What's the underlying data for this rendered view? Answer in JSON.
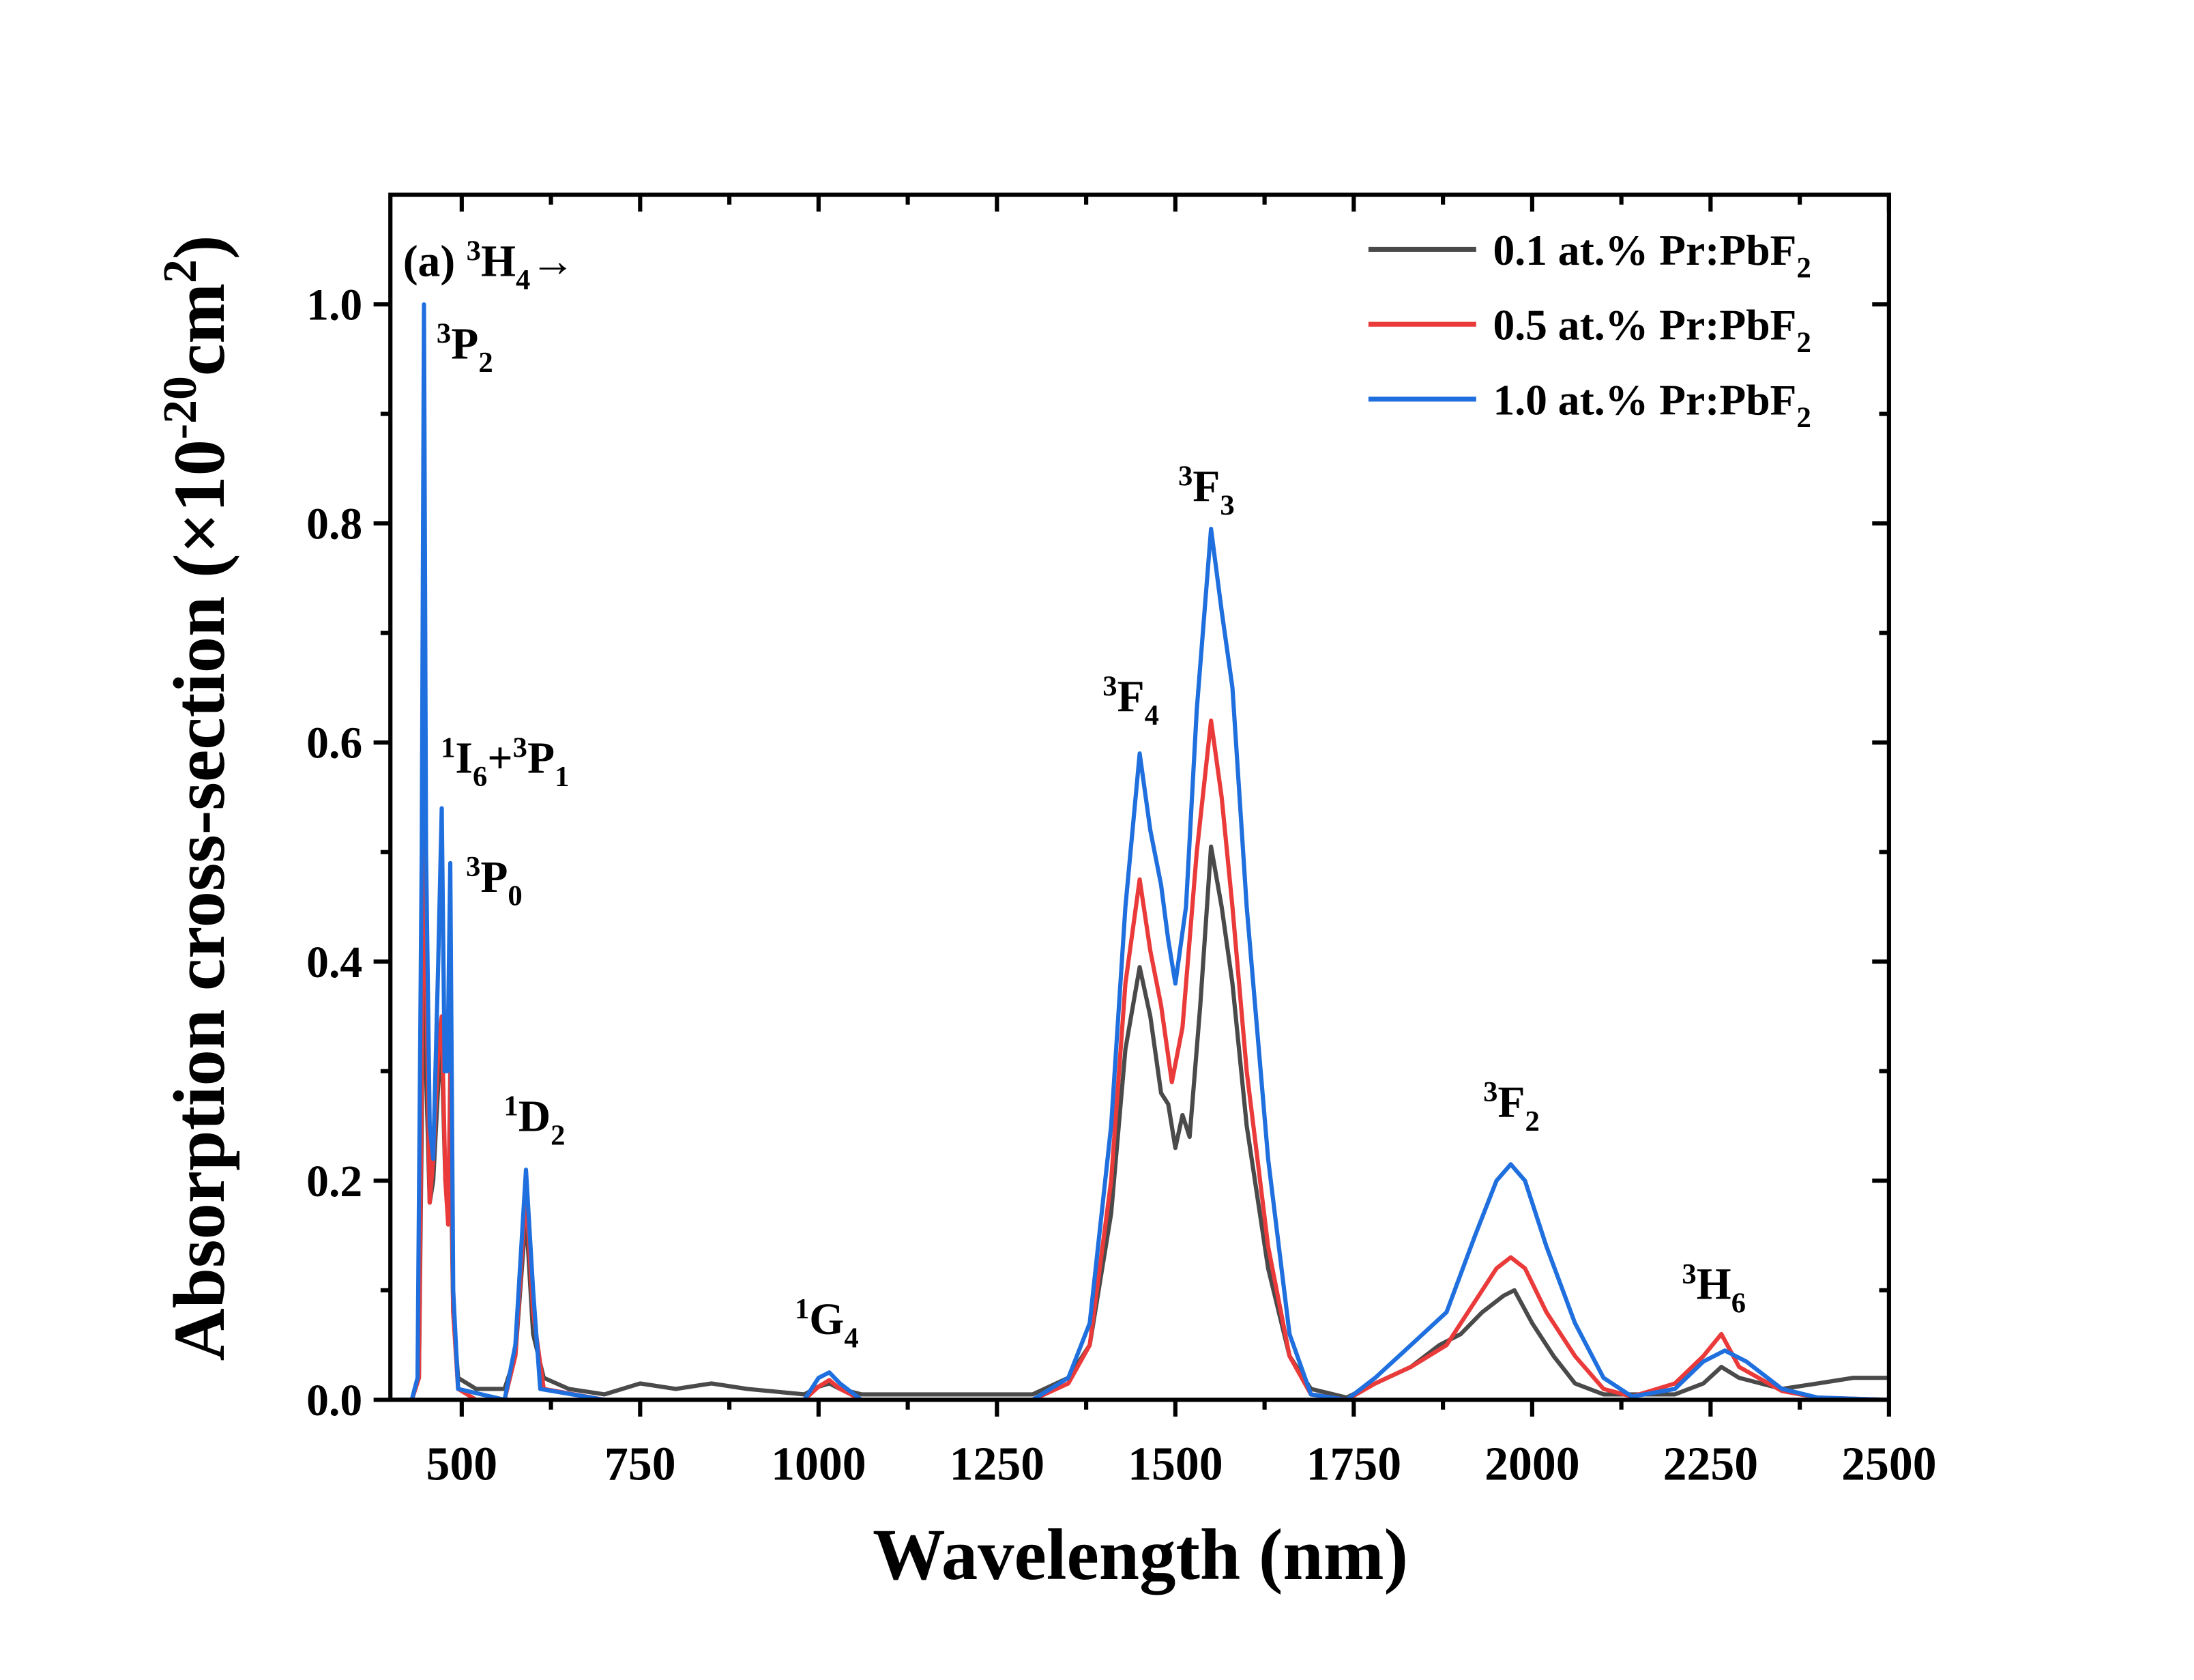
{
  "chart_data": {
    "type": "line",
    "title": "",
    "xlabel": "Wavelength (nm)",
    "ylabel": {
      "base": "Absorption cross-section (×10",
      "sup": "-20",
      "mid": "cm",
      "sup2": "2",
      "end": ")"
    },
    "xlim": [
      400,
      2500
    ],
    "ylim": [
      0,
      1.1
    ],
    "xticks": [
      "500",
      "750",
      "1000",
      "1250",
      "1500",
      "1750",
      "2000",
      "2250",
      "2500"
    ],
    "yticks": [
      "0.0",
      "0.2",
      "0.4",
      "0.6",
      "0.8",
      "1.0"
    ],
    "grid": false,
    "legend_position": "top-right",
    "panel_label": [
      {
        "t": "(a) "
      },
      {
        "t": "3",
        "s": "sup"
      },
      {
        "t": "H"
      },
      {
        "t": "4",
        "s": "sub"
      },
      {
        "t": "→"
      }
    ],
    "annotations": [
      [
        {
          "t": "3",
          "s": "sup"
        },
        {
          "t": "P"
        },
        {
          "t": "2",
          "s": "sub"
        }
      ],
      [
        {
          "t": "1",
          "s": "sup"
        },
        {
          "t": "I"
        },
        {
          "t": "6",
          "s": "sub"
        },
        {
          "t": "+"
        },
        {
          "t": "3",
          "s": "sup"
        },
        {
          "t": "P"
        },
        {
          "t": "1",
          "s": "sub"
        }
      ],
      [
        {
          "t": "3",
          "s": "sup"
        },
        {
          "t": "P"
        },
        {
          "t": "0",
          "s": "sub"
        }
      ],
      [
        {
          "t": "1",
          "s": "sup"
        },
        {
          "t": "D"
        },
        {
          "t": "2",
          "s": "sub"
        }
      ],
      [
        {
          "t": "1",
          "s": "sup"
        },
        {
          "t": "G"
        },
        {
          "t": "4",
          "s": "sub"
        }
      ],
      [
        {
          "t": "3",
          "s": "sup"
        },
        {
          "t": "F"
        },
        {
          "t": "4",
          "s": "sub"
        }
      ],
      [
        {
          "t": "3",
          "s": "sup"
        },
        {
          "t": "F"
        },
        {
          "t": "3",
          "s": "sub"
        }
      ],
      [
        {
          "t": "3",
          "s": "sup"
        },
        {
          "t": "F"
        },
        {
          "t": "2",
          "s": "sub"
        }
      ],
      [
        {
          "t": "3",
          "s": "sup"
        },
        {
          "t": "H"
        },
        {
          "t": "6",
          "s": "sub"
        }
      ]
    ],
    "series": [
      {
        "name": "0.1 at.% Pr:PbF",
        "name_sub": "2",
        "color": "#4a4a4a",
        "x": [
          400,
          430,
          440,
          444,
          447,
          450,
          455,
          460,
          468,
          472,
          477,
          481,
          484,
          488,
          495,
          520,
          560,
          575,
          590,
          600,
          615,
          650,
          700,
          750,
          800,
          850,
          900,
          980,
          1000,
          1015,
          1030,
          1060,
          1300,
          1350,
          1380,
          1410,
          1430,
          1450,
          1465,
          1480,
          1490,
          1500,
          1510,
          1520,
          1535,
          1550,
          1565,
          1580,
          1600,
          1630,
          1660,
          1690,
          1740,
          1780,
          1830,
          1870,
          1900,
          1930,
          1960,
          1975,
          2000,
          2030,
          2060,
          2100,
          2200,
          2240,
          2265,
          2290,
          2350,
          2400,
          2450,
          2500
        ],
        "y": [
          0,
          0,
          0.02,
          0.25,
          0.55,
          0.3,
          0.18,
          0.2,
          0.3,
          0.32,
          0.2,
          0.18,
          0.25,
          0.08,
          0.02,
          0.01,
          0.01,
          0.04,
          0.17,
          0.06,
          0.02,
          0.01,
          0.005,
          0.015,
          0.01,
          0.015,
          0.01,
          0.005,
          0.012,
          0.015,
          0.01,
          0.005,
          0.005,
          0.02,
          0.05,
          0.17,
          0.32,
          0.395,
          0.35,
          0.28,
          0.27,
          0.23,
          0.26,
          0.24,
          0.36,
          0.505,
          0.45,
          0.38,
          0.25,
          0.12,
          0.04,
          0.01,
          0.002,
          0.015,
          0.03,
          0.05,
          0.06,
          0.08,
          0.095,
          0.1,
          0.07,
          0.04,
          0.015,
          0.005,
          0.005,
          0.015,
          0.03,
          0.02,
          0.01,
          0.015,
          0.02,
          0.02
        ]
      },
      {
        "name": "0.5 at.% Pr:PbF",
        "name_sub": "2",
        "color": "#ea3a3a",
        "x": [
          400,
          430,
          440,
          444,
          447,
          450,
          455,
          460,
          468,
          472,
          477,
          481,
          484,
          488,
          495,
          520,
          560,
          575,
          590,
          600,
          615,
          700,
          980,
          1000,
          1015,
          1030,
          1060,
          1300,
          1350,
          1380,
          1410,
          1430,
          1450,
          1465,
          1480,
          1495,
          1510,
          1530,
          1550,
          1565,
          1580,
          1600,
          1630,
          1660,
          1690,
          1740,
          1780,
          1830,
          1880,
          1920,
          1950,
          1970,
          1990,
          2020,
          2060,
          2100,
          2140,
          2200,
          2240,
          2265,
          2290,
          2350,
          2400,
          2500
        ],
        "y": [
          0,
          0,
          0.02,
          0.3,
          0.7,
          0.4,
          0.18,
          0.22,
          0.33,
          0.35,
          0.2,
          0.16,
          0.3,
          0.08,
          0.01,
          0,
          0,
          0.04,
          0.19,
          0.08,
          0.01,
          0,
          0,
          0.012,
          0.018,
          0.01,
          0,
          0,
          0.015,
          0.05,
          0.2,
          0.38,
          0.475,
          0.41,
          0.36,
          0.29,
          0.34,
          0.5,
          0.62,
          0.55,
          0.45,
          0.3,
          0.14,
          0.04,
          0.005,
          0,
          0.015,
          0.03,
          0.05,
          0.09,
          0.12,
          0.13,
          0.12,
          0.08,
          0.04,
          0.01,
          0.003,
          0.015,
          0.04,
          0.06,
          0.03,
          0.008,
          0.002,
          0
        ]
      },
      {
        "name": "1.0 at.% Pr:PbF",
        "name_sub": "2",
        "color": "#1f6fde",
        "x": [
          400,
          430,
          438,
          444,
          447,
          450,
          455,
          460,
          467,
          472,
          476,
          480,
          484,
          488,
          495,
          560,
          575,
          590,
          600,
          610,
          700,
          980,
          1000,
          1015,
          1030,
          1060,
          1300,
          1350,
          1380,
          1410,
          1430,
          1450,
          1465,
          1480,
          1490,
          1500,
          1515,
          1530,
          1550,
          1565,
          1580,
          1600,
          1630,
          1660,
          1690,
          1740,
          1780,
          1830,
          1880,
          1920,
          1950,
          1970,
          1990,
          2020,
          2060,
          2100,
          2140,
          2200,
          2240,
          2270,
          2300,
          2350,
          2400,
          2500
        ],
        "y": [
          0,
          0,
          0.02,
          0.5,
          1.0,
          0.5,
          0.25,
          0.22,
          0.4,
          0.54,
          0.3,
          0.3,
          0.49,
          0.1,
          0.01,
          0,
          0.05,
          0.21,
          0.1,
          0.01,
          0,
          0,
          0.02,
          0.025,
          0.015,
          0,
          0,
          0.02,
          0.07,
          0.25,
          0.45,
          0.59,
          0.52,
          0.47,
          0.42,
          0.38,
          0.45,
          0.63,
          0.795,
          0.72,
          0.65,
          0.45,
          0.22,
          0.06,
          0.005,
          0,
          0.02,
          0.05,
          0.08,
          0.15,
          0.2,
          0.215,
          0.2,
          0.14,
          0.07,
          0.02,
          0.003,
          0.01,
          0.035,
          0.045,
          0.035,
          0.01,
          0.002,
          0
        ]
      }
    ]
  }
}
